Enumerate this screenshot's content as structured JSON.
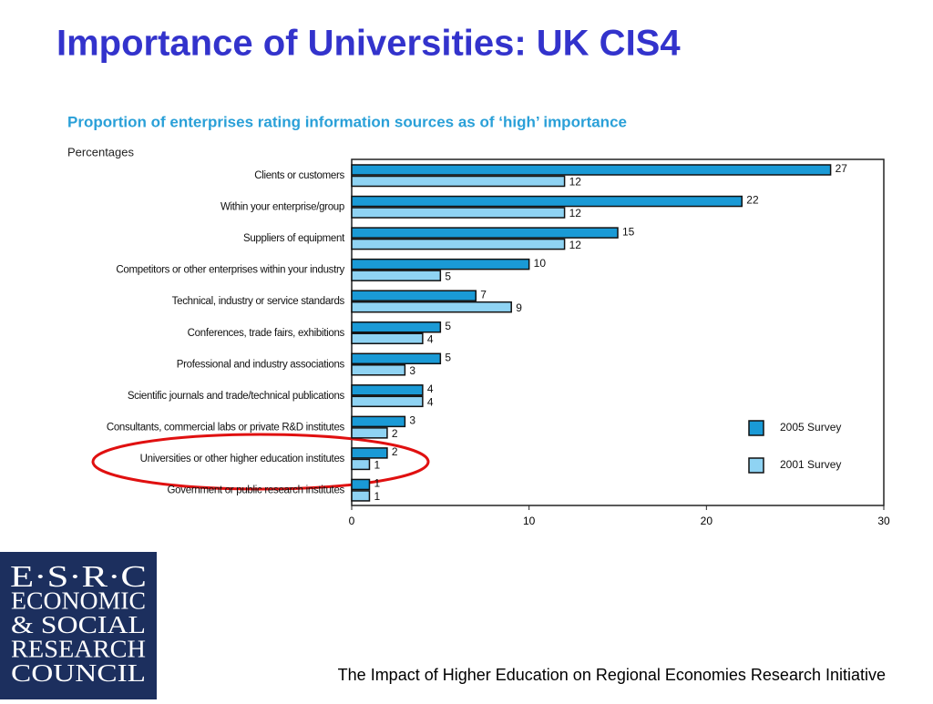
{
  "slide_title": "Importance of Universities: UK CIS4",
  "footer": "The Impact of Higher Education on Regional Economies Research Initiative",
  "logo": {
    "lines": [
      "E·S·R·C",
      "ECONOMIC",
      "& SOCIAL",
      "RESEARCH",
      "COUNCIL"
    ]
  },
  "chart_data": {
    "type": "hbar",
    "title": "Proportion of enterprises rating information sources as of ‘high’ importance",
    "axis_label": "Percentages",
    "categories": [
      "Clients or customers",
      "Within your enterprise/group",
      "Suppliers of equipment",
      "Competitors or other enterprises within your industry",
      "Technical, industry or service standards",
      "Conferences, trade fairs, exhibitions",
      "Professional and industry associations",
      "Scientific journals and trade/technical publications",
      "Consultants, commercial labs or private R&D institutes",
      "Universities or other higher education institutes",
      "Government or public research institutes"
    ],
    "series": [
      {
        "name": "2005 Survey",
        "color": "#1a9ad6",
        "values": [
          27,
          22,
          15,
          10,
          7,
          5,
          5,
          4,
          3,
          2,
          1
        ]
      },
      {
        "name": "2001 Survey",
        "color": "#8fd3f3",
        "values": [
          12,
          12,
          12,
          5,
          9,
          4,
          3,
          4,
          2,
          1,
          1
        ]
      }
    ],
    "xlim": [
      0,
      30
    ],
    "xticks": [
      0,
      10,
      20,
      30
    ],
    "grid": false,
    "legend": "right"
  }
}
